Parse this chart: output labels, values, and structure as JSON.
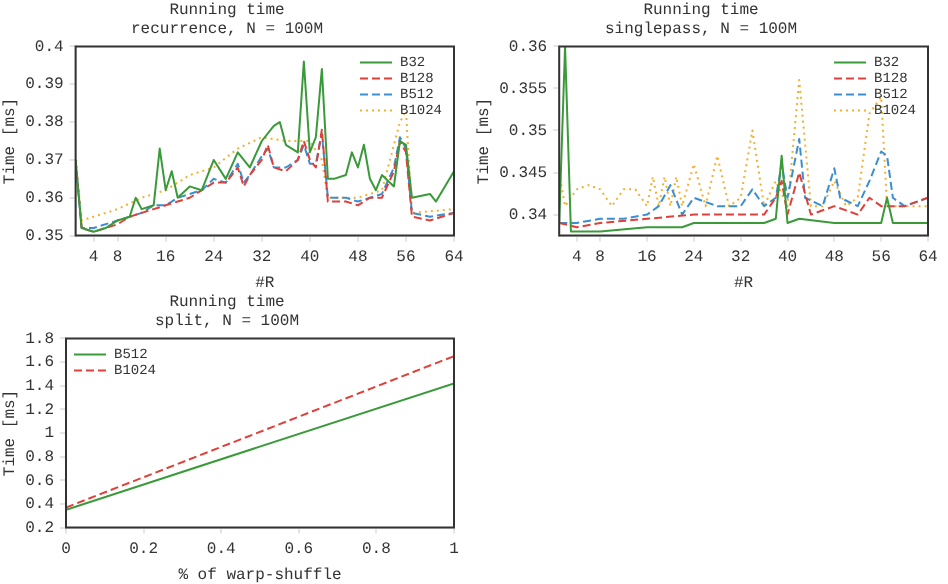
{
  "chart_data": [
    {
      "type": "line",
      "title": "Running time",
      "subtitle": "recurrence, N = 100M",
      "xlabel": "#R",
      "ylabel": "Time [ms]",
      "xlim": [
        1,
        64
      ],
      "xticks": [
        4,
        8,
        16,
        24,
        32,
        40,
        48,
        56,
        64
      ],
      "ylim": [
        0.35,
        0.4
      ],
      "yticks": [
        0.35,
        0.36,
        0.37,
        0.38,
        0.39,
        0.4
      ],
      "grid": false,
      "legend": "top right",
      "marker": "none",
      "series": [
        {
          "name": "B32",
          "color": "#3a9a3a",
          "line_style": "solid",
          "x": [
            1,
            2,
            4,
            6,
            8,
            10,
            11,
            12,
            14,
            15,
            16,
            17,
            18,
            20,
            22,
            24,
            26,
            28,
            30,
            32,
            34,
            35,
            36,
            38,
            39,
            40,
            41,
            42,
            43,
            44,
            46,
            47,
            48,
            49,
            50,
            51,
            52,
            54,
            55,
            56,
            57,
            60,
            61,
            64
          ],
          "values": [
            0.37,
            0.352,
            0.351,
            0.352,
            0.354,
            0.355,
            0.36,
            0.357,
            0.358,
            0.373,
            0.362,
            0.367,
            0.36,
            0.363,
            0.362,
            0.37,
            0.365,
            0.372,
            0.368,
            0.375,
            0.379,
            0.38,
            0.374,
            0.372,
            0.396,
            0.372,
            0.376,
            0.394,
            0.365,
            0.365,
            0.366,
            0.372,
            0.368,
            0.374,
            0.365,
            0.362,
            0.366,
            0.363,
            0.375,
            0.374,
            0.36,
            0.361,
            0.359,
            0.367
          ]
        },
        {
          "name": "B128",
          "color": "#e0403a",
          "line_style": "dashed",
          "x": [
            1,
            2,
            4,
            8,
            10,
            12,
            14,
            16,
            18,
            20,
            22,
            24,
            26,
            28,
            29,
            30,
            32,
            33,
            34,
            36,
            38,
            39,
            40,
            41,
            42,
            43,
            46,
            48,
            50,
            52,
            54,
            55,
            56,
            57,
            60,
            64
          ],
          "values": [
            0.37,
            0.352,
            0.351,
            0.353,
            0.355,
            0.356,
            0.357,
            0.358,
            0.359,
            0.36,
            0.362,
            0.364,
            0.364,
            0.368,
            0.363,
            0.366,
            0.37,
            0.374,
            0.368,
            0.367,
            0.37,
            0.375,
            0.37,
            0.368,
            0.378,
            0.359,
            0.359,
            0.358,
            0.36,
            0.36,
            0.367,
            0.375,
            0.372,
            0.355,
            0.354,
            0.356
          ]
        },
        {
          "name": "B512",
          "color": "#3a8fd0",
          "line_style": "dashed",
          "x": [
            1,
            2,
            4,
            8,
            10,
            12,
            14,
            16,
            18,
            20,
            22,
            24,
            26,
            28,
            29,
            30,
            32,
            33,
            34,
            36,
            38,
            39,
            40,
            41,
            42,
            43,
            46,
            48,
            50,
            52,
            54,
            55,
            56,
            57,
            60,
            64
          ],
          "values": [
            0.369,
            0.352,
            0.352,
            0.354,
            0.355,
            0.356,
            0.358,
            0.358,
            0.36,
            0.361,
            0.362,
            0.365,
            0.364,
            0.369,
            0.364,
            0.366,
            0.371,
            0.373,
            0.368,
            0.368,
            0.37,
            0.374,
            0.369,
            0.369,
            0.377,
            0.36,
            0.36,
            0.359,
            0.36,
            0.361,
            0.368,
            0.376,
            0.373,
            0.356,
            0.355,
            0.356
          ]
        },
        {
          "name": "B1024",
          "color": "#f0b030",
          "line_style": "dotted",
          "x": [
            1,
            2,
            4,
            8,
            12,
            16,
            20,
            24,
            28,
            32,
            36,
            40,
            42,
            43,
            48,
            52,
            55,
            56,
            57,
            64
          ],
          "values": [
            0.37,
            0.354,
            0.355,
            0.357,
            0.36,
            0.362,
            0.366,
            0.368,
            0.373,
            0.376,
            0.375,
            0.375,
            0.37,
            0.36,
            0.36,
            0.362,
            0.38,
            0.383,
            0.356,
            0.357
          ]
        }
      ]
    },
    {
      "type": "line",
      "title": "Running time",
      "subtitle": "singlepass, N = 100M",
      "xlabel": "#R",
      "ylabel": "Time [ms]",
      "xlim": [
        1,
        64
      ],
      "xticks": [
        4,
        8,
        16,
        24,
        32,
        40,
        48,
        56,
        64
      ],
      "ylim": [
        0.3375,
        0.36
      ],
      "yticks": [
        0.34,
        0.345,
        0.35,
        0.355,
        0.36
      ],
      "grid": false,
      "legend": "top right",
      "marker": "none",
      "series": [
        {
          "name": "B32",
          "color": "#3a9a3a",
          "line_style": "solid",
          "x": [
            1,
            2,
            3,
            8,
            16,
            22,
            24,
            32,
            36,
            38,
            39,
            40,
            42,
            48,
            54,
            56,
            57,
            58,
            64
          ],
          "values": [
            0.339,
            0.36,
            0.338,
            0.338,
            0.3385,
            0.3385,
            0.339,
            0.339,
            0.339,
            0.3395,
            0.347,
            0.339,
            0.3395,
            0.339,
            0.339,
            0.339,
            0.342,
            0.339,
            0.339
          ]
        },
        {
          "name": "B128",
          "color": "#e0403a",
          "line_style": "dashed",
          "x": [
            1,
            4,
            8,
            16,
            24,
            32,
            36,
            38,
            39,
            40,
            42,
            44,
            48,
            52,
            54,
            56,
            60,
            64
          ],
          "values": [
            0.339,
            0.3385,
            0.339,
            0.3395,
            0.34,
            0.34,
            0.34,
            0.342,
            0.344,
            0.34,
            0.345,
            0.34,
            0.341,
            0.34,
            0.342,
            0.341,
            0.341,
            0.342
          ]
        },
        {
          "name": "B512",
          "color": "#3a8fd0",
          "line_style": "dashed",
          "x": [
            1,
            4,
            8,
            12,
            16,
            18,
            20,
            22,
            24,
            28,
            30,
            32,
            34,
            36,
            38,
            39,
            40,
            42,
            43,
            46,
            48,
            49,
            52,
            54,
            56,
            57,
            58,
            60,
            64
          ],
          "values": [
            0.339,
            0.339,
            0.3395,
            0.3395,
            0.34,
            0.341,
            0.3435,
            0.34,
            0.342,
            0.341,
            0.341,
            0.341,
            0.343,
            0.341,
            0.342,
            0.346,
            0.342,
            0.349,
            0.342,
            0.341,
            0.3455,
            0.342,
            0.341,
            0.344,
            0.3475,
            0.347,
            0.342,
            0.341,
            0.342
          ]
        },
        {
          "name": "B1024",
          "color": "#f0b030",
          "line_style": "dotted",
          "x": [
            1,
            2,
            4,
            6,
            8,
            10,
            12,
            14,
            16,
            17,
            18,
            19,
            20,
            21,
            22,
            24,
            26,
            28,
            30,
            32,
            34,
            36,
            38,
            40,
            42,
            44,
            46,
            48,
            50,
            52,
            54,
            56,
            57,
            60,
            64
          ],
          "values": [
            0.345,
            0.341,
            0.343,
            0.3435,
            0.343,
            0.341,
            0.343,
            0.343,
            0.341,
            0.3445,
            0.341,
            0.3445,
            0.341,
            0.3445,
            0.341,
            0.346,
            0.341,
            0.347,
            0.341,
            0.342,
            0.35,
            0.341,
            0.344,
            0.341,
            0.356,
            0.341,
            0.341,
            0.344,
            0.341,
            0.342,
            0.352,
            0.354,
            0.341,
            0.341,
            0.341
          ]
        }
      ]
    },
    {
      "type": "line",
      "title": "Running time",
      "subtitle": "split, N = 100M",
      "xlabel": "% of warp-shuffle",
      "ylabel": "Time [ms]",
      "xlim": [
        0,
        1
      ],
      "xticks": [
        0,
        0.2,
        0.4,
        0.6,
        0.8,
        1
      ],
      "ylim": [
        0.2,
        1.8
      ],
      "yticks": [
        0.2,
        0.4,
        0.6,
        0.8,
        1,
        1.2,
        1.4,
        1.6,
        1.8
      ],
      "grid": false,
      "legend": "top left",
      "marker": "none",
      "series": [
        {
          "name": "B512",
          "color": "#3a9a3a",
          "line_style": "solid",
          "x": [
            0,
            1
          ],
          "values": [
            0.35,
            1.42
          ]
        },
        {
          "name": "B1024",
          "color": "#e0403a",
          "line_style": "dashed",
          "x": [
            0,
            1
          ],
          "values": [
            0.37,
            1.65
          ]
        }
      ]
    }
  ]
}
